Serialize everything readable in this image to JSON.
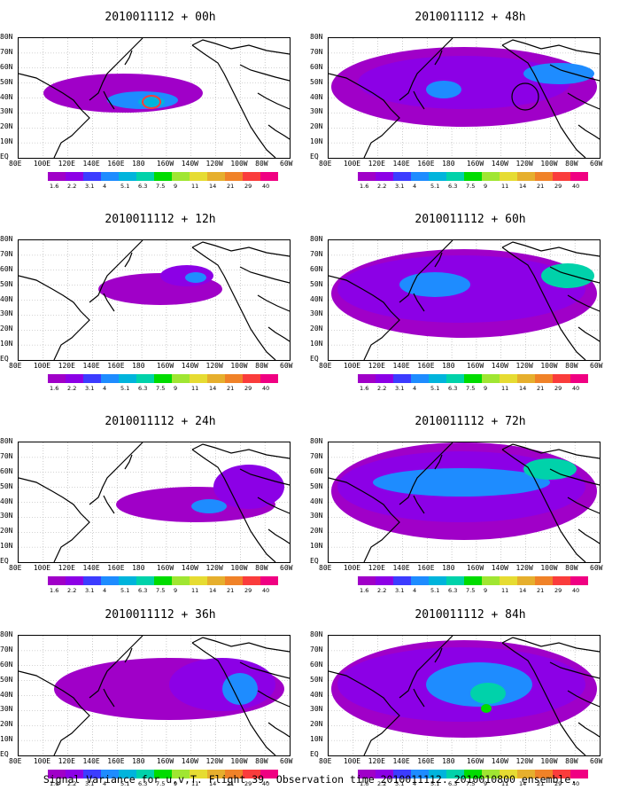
{
  "panels": [
    {
      "title": "2010011112 + 00h",
      "lead_hours": 0
    },
    {
      "title": "2010011112 + 48h",
      "lead_hours": 48
    },
    {
      "title": "2010011112 + 12h",
      "lead_hours": 12
    },
    {
      "title": "2010011112 + 60h",
      "lead_hours": 60
    },
    {
      "title": "2010011112 + 24h",
      "lead_hours": 24
    },
    {
      "title": "2010011112 + 72h",
      "lead_hours": 72
    },
    {
      "title": "2010011112 + 36h",
      "lead_hours": 36
    },
    {
      "title": "2010011112 + 84h",
      "lead_hours": 84
    }
  ],
  "lat_labels": [
    "80N",
    "70N",
    "60N",
    "50N",
    "40N",
    "30N",
    "20N",
    "10N",
    "EQ"
  ],
  "lon_labels": [
    "80E",
    "100E",
    "120E",
    "140E",
    "160E",
    "180",
    "160W",
    "140W",
    "120W",
    "100W",
    "80W",
    "60W"
  ],
  "colorbar": {
    "levels": [
      "1.6",
      "2.2",
      "3.1",
      "4",
      "5.1",
      "6.3",
      "7.5",
      "9",
      "11",
      "14",
      "21",
      "29",
      "40"
    ],
    "colors": [
      "#a000c8",
      "#8c00e6",
      "#3c3cff",
      "#1e8cff",
      "#00b4dc",
      "#00d2aa",
      "#00dc00",
      "#a0e632",
      "#e6dc32",
      "#e6af2d",
      "#f08228",
      "#fa3c3c",
      "#f00082"
    ]
  },
  "footer": "Signal Variance for u,v,T. Flight 39. Observation time 2010011112. 2010010800 ensemble.",
  "field_colors": {
    "purple": "#a000c8",
    "violet": "#8c00e6",
    "blue": "#3c3cff",
    "lightblue": "#1e8cff",
    "cyan": "#00b4dc",
    "teal": "#00d2aa",
    "green": "#00dc00",
    "red": "#fa3c3c"
  }
}
